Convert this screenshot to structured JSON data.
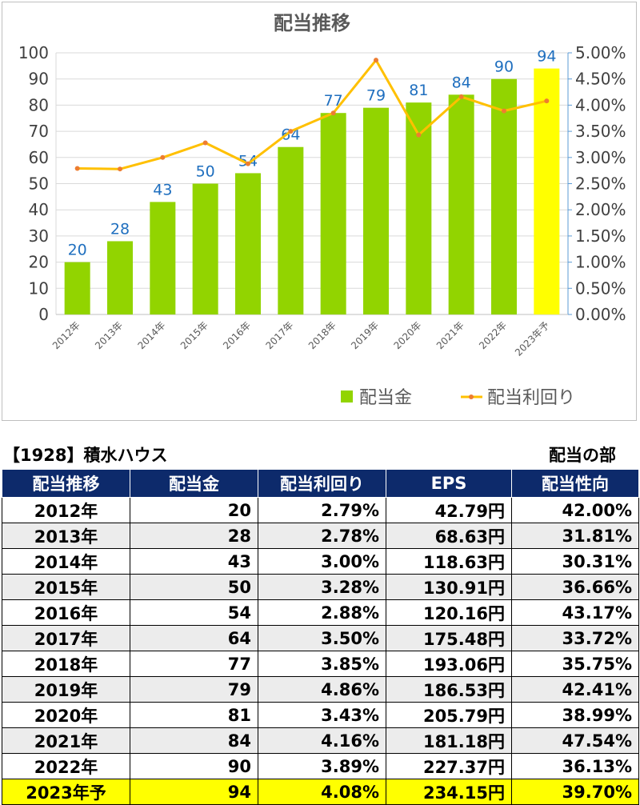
{
  "chart_data": {
    "type": "bar",
    "title": "配当推移",
    "categories": [
      "2012年",
      "2013年",
      "2014年",
      "2015年",
      "2016年",
      "2017年",
      "2018年",
      "2019年",
      "2020年",
      "2021年",
      "2022年",
      "2023年予"
    ],
    "series": [
      {
        "name": "配当金",
        "type": "bar",
        "axis": "left",
        "color": "#92d400",
        "highlight_color": "#ffff00",
        "highlight_index": 11,
        "values": [
          20,
          28,
          43,
          50,
          54,
          64,
          77,
          79,
          81,
          84,
          90,
          94
        ]
      },
      {
        "name": "配当利回り",
        "type": "line",
        "axis": "right",
        "color": "#ffc000",
        "values": [
          2.79,
          2.78,
          3.0,
          3.28,
          2.88,
          3.5,
          3.85,
          4.86,
          3.43,
          4.16,
          3.89,
          4.08
        ]
      }
    ],
    "data_labels": [
      "20",
      "28",
      "43",
      "50",
      "54",
      "64",
      "77",
      "79",
      "81",
      "84",
      "90",
      "94"
    ],
    "y_left": {
      "range": [
        0,
        100
      ],
      "ticks": [
        "0",
        "10",
        "20",
        "30",
        "40",
        "50",
        "60",
        "70",
        "80",
        "90",
        "100"
      ]
    },
    "y_right": {
      "range": [
        0,
        5
      ],
      "ticks": [
        "0.00%",
        "0.50%",
        "1.00%",
        "1.50%",
        "2.00%",
        "2.50%",
        "3.00%",
        "3.50%",
        "4.00%",
        "4.50%",
        "5.00%"
      ]
    },
    "grid": true,
    "legend": "bottom-right",
    "label_color": "#1f6fbf"
  },
  "table": {
    "caption_left": "【1928】積水ハウス",
    "caption_right": "配当の部",
    "headers": [
      "配当推移",
      "配当金",
      "配当利回り",
      "EPS",
      "配当性向"
    ],
    "rows": [
      [
        "2012年",
        "20",
        "2.79%",
        "42.79円",
        "42.00%"
      ],
      [
        "2013年",
        "28",
        "2.78%",
        "68.63円",
        "31.81%"
      ],
      [
        "2014年",
        "43",
        "3.00%",
        "118.63円",
        "30.31%"
      ],
      [
        "2015年",
        "50",
        "3.28%",
        "130.91円",
        "36.66%"
      ],
      [
        "2016年",
        "54",
        "2.88%",
        "120.16円",
        "43.17%"
      ],
      [
        "2017年",
        "64",
        "3.50%",
        "175.48円",
        "33.72%"
      ],
      [
        "2018年",
        "77",
        "3.85%",
        "193.06円",
        "35.75%"
      ],
      [
        "2019年",
        "79",
        "4.86%",
        "186.53円",
        "42.41%"
      ],
      [
        "2020年",
        "81",
        "3.43%",
        "205.79円",
        "38.99%"
      ],
      [
        "2021年",
        "84",
        "4.16%",
        "181.18円",
        "47.54%"
      ],
      [
        "2022年",
        "90",
        "3.89%",
        "227.37円",
        "36.13%"
      ],
      [
        "2023年予",
        "94",
        "4.08%",
        "234.15円",
        "39.70%"
      ]
    ],
    "header_color": "#0d2a6b",
    "stripe_color": "#ececec",
    "forecast_color": "#ffff00"
  }
}
